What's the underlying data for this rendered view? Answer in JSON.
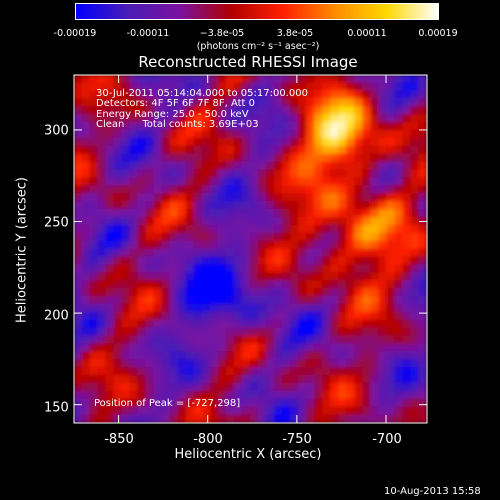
{
  "colorbar": {
    "ticks": [
      "-0.00019",
      "-0.00011",
      "−3.8e-05",
      "3.8e-05",
      "0.00011",
      "0.00019"
    ],
    "units": "(photons cm⁻² s⁻¹ asec⁻²)"
  },
  "title": "Reconstructed RHESSI Image",
  "annotations": {
    "time": "30-Jul-2011 05:14:04.000 to 05:17:00.000",
    "detectors": "Detectors: 4F 5F 6F 7F 8F, Att 0",
    "energy": "Energy Range: 25.0 - 50.0 keV",
    "clean": "Clean",
    "counts": "Total counts: 3.69E+03"
  },
  "peak_text": "Position of Peak = [-727,298]",
  "footer_date": "10-Aug-2013 15:58",
  "chart_data": {
    "type": "heatmap",
    "title": "Reconstructed RHESSI Image",
    "xlabel": "Heliocentric X (arcsec)",
    "ylabel": "Heliocentric Y (arcsec)",
    "xlim": [
      -875,
      -677
    ],
    "ylim": [
      140,
      330
    ],
    "xticks": [
      "-850",
      "-800",
      "-750",
      "-700"
    ],
    "xtick_values": [
      -850,
      -800,
      -750,
      -700
    ],
    "yticks": [
      "300",
      "250",
      "200",
      "150"
    ],
    "ytick_values": [
      300,
      250,
      200,
      150
    ],
    "colorbar_range": [
      -0.00019,
      0.00019
    ],
    "colormap": [
      "#0000ff",
      "#4a1cb6",
      "#7a12a0",
      "#b00000",
      "#ff2000",
      "#ff8a00",
      "#ffd800",
      "#ffffff"
    ],
    "peak_position": [
      -727,
      298
    ],
    "grid": false
  }
}
